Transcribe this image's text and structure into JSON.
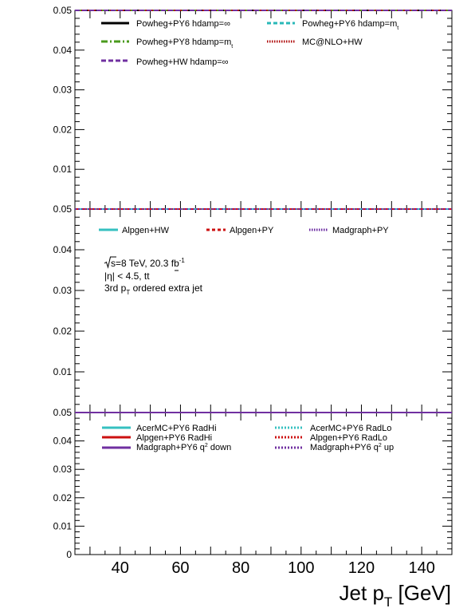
{
  "chart_data": {
    "type": "line",
    "x_axis": {
      "label": "Jet p",
      "label_sub": "T",
      "label_unit": " [GeV]",
      "range": [
        25,
        150
      ],
      "major_ticks": [
        40,
        60,
        80,
        100,
        120,
        140
      ],
      "minor_step": 5
    },
    "annotation": {
      "sqrt_s": "s",
      "energy": "=8 TeV, 20.3 fb",
      "lumi_exp": "-1",
      "eta": "|η| < 4.5, t",
      "eta_tail": "t",
      "jet_pre": "3rd p",
      "jet_sub": "T",
      "jet_post": " ordered extra jet"
    },
    "panels": [
      {
        "yrange": [
          0,
          0.05
        ],
        "ytick_labels": [
          "0.01",
          "0.02",
          "0.03",
          "0.04",
          "0.05"
        ],
        "ytick_values": [
          0.01,
          0.02,
          0.03,
          0.04,
          0.05
        ],
        "series": [
          {
            "name": "Powheg+PY6 hdamp=∞",
            "color": "#000000",
            "dash": "solid",
            "y": 0.05
          },
          {
            "name": "Powheg+PY6 hdamp=m",
            "sub": "t",
            "color": "#2ab8b8",
            "dash": "dashed",
            "y": 0.05
          },
          {
            "name": "Powheg+PY8 hdamp=m",
            "sub": "t",
            "color": "#4a9a1c",
            "dash": "dashdot",
            "y": 0.05
          },
          {
            "name": "MC@NLO+HW",
            "color": "#b01010",
            "dash": "dotted",
            "y": 0.05
          },
          {
            "name": "Powheg+HW hdamp=∞",
            "color": "#7030a0",
            "dash": "dashed",
            "y": 0.05
          }
        ]
      },
      {
        "yrange": [
          0,
          0.05
        ],
        "ytick_labels": [
          "0.01",
          "0.02",
          "0.03",
          "0.04",
          "0.05"
        ],
        "ytick_values": [
          0.01,
          0.02,
          0.03,
          0.04,
          0.05
        ],
        "series": [
          {
            "name": "Alpgen+HW",
            "color": "#36c0c0",
            "dash": "solid",
            "y": 0.05
          },
          {
            "name": "Alpgen+PY",
            "color": "#cc1111",
            "dash": "dashed",
            "y": 0.05
          },
          {
            "name": "Madgraph+PY",
            "color": "#6a2aa0",
            "dash": "dotted",
            "y": 0.05
          }
        ]
      },
      {
        "yrange": [
          0,
          0.05
        ],
        "ytick_labels": [
          "0",
          "0.01",
          "0.02",
          "0.03",
          "0.04",
          "0.05"
        ],
        "ytick_values": [
          0,
          0.01,
          0.02,
          0.03,
          0.04,
          0.05
        ],
        "series": [
          {
            "name": "AcerMC+PY6 RadHi",
            "color": "#36c0c0",
            "dash": "solid",
            "y": 0.05
          },
          {
            "name": "AcerMC+PY6 RadLo",
            "color": "#36c0c0",
            "dash": "dotted",
            "y": 0.05
          },
          {
            "name": "Alpgen+PY6 RadHi",
            "color": "#cc1111",
            "dash": "solid",
            "y": 0.05
          },
          {
            "name": "Alpgen+PY6 RadLo",
            "color": "#cc1111",
            "dash": "dotted",
            "y": 0.05
          },
          {
            "name": "Madgraph+PY6 q",
            "sup": "2",
            "tail": " down",
            "color": "#7030a0",
            "dash": "solid",
            "y": 0.05
          },
          {
            "name": "Madgraph+PY6 q",
            "sup": "2",
            "tail": " up",
            "color": "#7030a0",
            "dash": "dotted",
            "y": 0.05
          }
        ]
      }
    ]
  }
}
